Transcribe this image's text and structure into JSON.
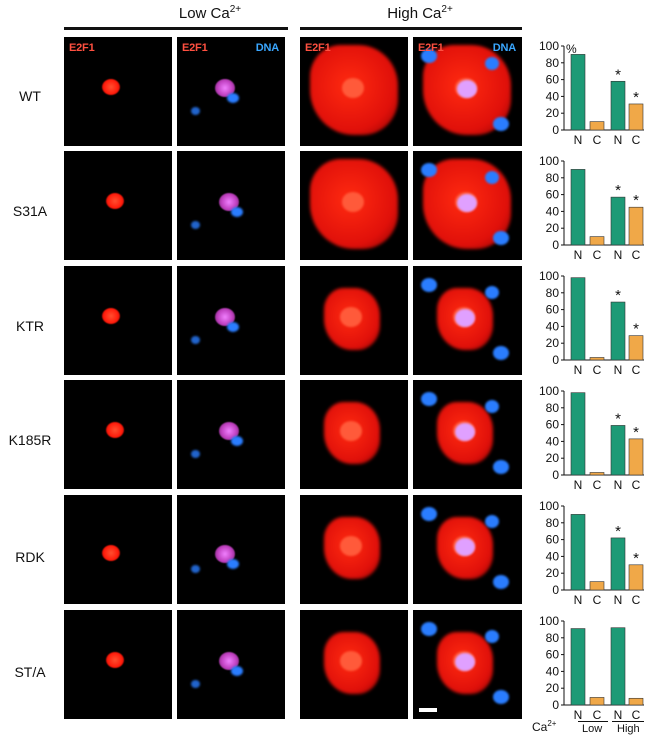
{
  "header": {
    "low_base": "Low Ca",
    "low_sup": "2+",
    "high_base": "High Ca",
    "high_sup": "2+"
  },
  "panel_labels": {
    "e2f1": "E2F1",
    "dna": "DNA"
  },
  "percent_label": "%",
  "footer": {
    "ca_base": "Ca",
    "ca_sup": "2+",
    "low": "Low",
    "high": "High"
  },
  "colors": {
    "nuclear_bar": "#1d9a76",
    "cytoplasmic_bar": "#f0a848",
    "e2f1_stain": "#ff1a0a",
    "dna_stain": "#2a7dff"
  },
  "rows": [
    {
      "label": "WT"
    },
    {
      "label": "S31A"
    },
    {
      "label": "KTR"
    },
    {
      "label": "K185R"
    },
    {
      "label": "RDK"
    },
    {
      "label": "ST/A"
    }
  ],
  "chart_data": [
    {
      "type": "bar",
      "categories": [
        "N",
        "C",
        "N",
        "C"
      ],
      "values": [
        90,
        10,
        58,
        31
      ],
      "ylim": [
        0,
        100
      ],
      "yticks": [
        0,
        20,
        40,
        60,
        80,
        100
      ],
      "annotations": [
        "",
        "",
        "*",
        "*"
      ]
    },
    {
      "type": "bar",
      "categories": [
        "N",
        "C",
        "N",
        "C"
      ],
      "values": [
        90,
        10,
        57,
        45
      ],
      "ylim": [
        0,
        100
      ],
      "yticks": [
        0,
        20,
        40,
        60,
        80,
        100
      ],
      "annotations": [
        "",
        "",
        "*",
        "*"
      ]
    },
    {
      "type": "bar",
      "categories": [
        "N",
        "C",
        "N",
        "C"
      ],
      "values": [
        98,
        3,
        69,
        29
      ],
      "ylim": [
        0,
        100
      ],
      "yticks": [
        0,
        20,
        40,
        60,
        80,
        100
      ],
      "annotations": [
        "",
        "",
        "*",
        "*"
      ]
    },
    {
      "type": "bar",
      "categories": [
        "N",
        "C",
        "N",
        "C"
      ],
      "values": [
        98,
        3,
        59,
        43
      ],
      "ylim": [
        0,
        100
      ],
      "yticks": [
        0,
        20,
        40,
        60,
        80,
        100
      ],
      "annotations": [
        "",
        "",
        "*",
        "*"
      ]
    },
    {
      "type": "bar",
      "categories": [
        "N",
        "C",
        "N",
        "C"
      ],
      "values": [
        90,
        10,
        62,
        30
      ],
      "ylim": [
        0,
        100
      ],
      "yticks": [
        0,
        20,
        40,
        60,
        80,
        100
      ],
      "annotations": [
        "",
        "",
        "*",
        "*"
      ]
    },
    {
      "type": "bar",
      "categories": [
        "N",
        "C",
        "N",
        "C"
      ],
      "values": [
        91,
        9,
        92,
        8
      ],
      "ylim": [
        0,
        100
      ],
      "yticks": [
        0,
        20,
        40,
        60,
        80,
        100
      ],
      "annotations": [
        "",
        "",
        "",
        ""
      ]
    }
  ]
}
